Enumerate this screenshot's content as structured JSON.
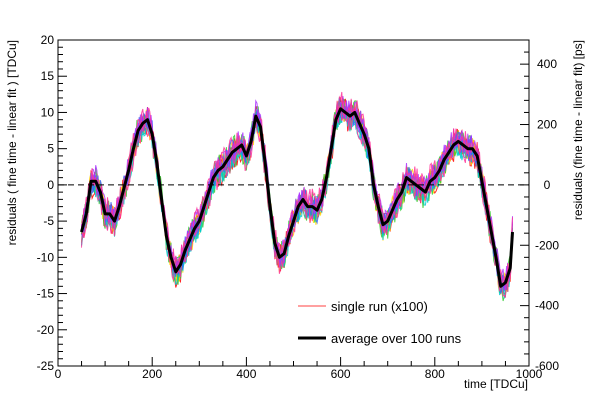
{
  "chart_data": {
    "type": "line",
    "x_axis": {
      "label": "time [TDCu]",
      "range": [
        0,
        1000
      ],
      "ticks": [
        0,
        200,
        400,
        600,
        800,
        1000
      ]
    },
    "y_left": {
      "label": "residuals ( fine time - linear fit ) [TDCu]",
      "range": [
        -25,
        20
      ],
      "ticks": [
        20,
        15,
        10,
        5,
        0,
        -5,
        -10,
        -15,
        -20,
        -25
      ]
    },
    "y_right": {
      "label": "residuals (fine time - linear fit) [ps]",
      "range": [
        -600,
        480
      ],
      "ticks": [
        400,
        200,
        0,
        -200,
        -400,
        -600
      ]
    },
    "reference_line": {
      "y": 0,
      "style": "dashed"
    },
    "legend": {
      "placement": "bottom-right",
      "entries": [
        {
          "label": "single run (x100)",
          "color": "#ff4040",
          "style": "thin"
        },
        {
          "label": "average over 100 runs",
          "color": "#000000",
          "style": "thick"
        }
      ]
    },
    "band_colors": [
      "#ff0000",
      "#ff8800",
      "#ffdd00",
      "#33cc33",
      "#00cccc",
      "#3366ff",
      "#aa33ff",
      "#ff3399"
    ],
    "band_halfwidth": 2.0,
    "series": [
      {
        "name": "average over 100 runs",
        "color": "#000000",
        "points": [
          [
            50,
            -6.5
          ],
          [
            60,
            -4
          ],
          [
            70,
            0.5
          ],
          [
            80,
            0.5
          ],
          [
            90,
            -1
          ],
          [
            100,
            -4
          ],
          [
            110,
            -4
          ],
          [
            120,
            -5
          ],
          [
            130,
            -3
          ],
          [
            140,
            -0.5
          ],
          [
            150,
            2
          ],
          [
            160,
            5
          ],
          [
            170,
            7.5
          ],
          [
            180,
            8.5
          ],
          [
            190,
            9
          ],
          [
            200,
            7
          ],
          [
            210,
            3
          ],
          [
            220,
            -2
          ],
          [
            230,
            -7
          ],
          [
            240,
            -10
          ],
          [
            250,
            -12
          ],
          [
            260,
            -11
          ],
          [
            270,
            -9
          ],
          [
            280,
            -7.5
          ],
          [
            290,
            -6
          ],
          [
            300,
            -5
          ],
          [
            310,
            -3
          ],
          [
            320,
            -1
          ],
          [
            330,
            1
          ],
          [
            340,
            2
          ],
          [
            350,
            2.5
          ],
          [
            360,
            3.5
          ],
          [
            370,
            4.5
          ],
          [
            380,
            5
          ],
          [
            390,
            5.5
          ],
          [
            400,
            4
          ],
          [
            410,
            6
          ],
          [
            420,
            9.5
          ],
          [
            430,
            8
          ],
          [
            440,
            3
          ],
          [
            450,
            -3
          ],
          [
            460,
            -8
          ],
          [
            470,
            -10
          ],
          [
            480,
            -9.5
          ],
          [
            490,
            -7
          ],
          [
            500,
            -5
          ],
          [
            510,
            -3
          ],
          [
            520,
            -2
          ],
          [
            530,
            -3
          ],
          [
            540,
            -3
          ],
          [
            550,
            -3.5
          ],
          [
            560,
            -2
          ],
          [
            570,
            1
          ],
          [
            580,
            5
          ],
          [
            590,
            9
          ],
          [
            600,
            10.5
          ],
          [
            610,
            10
          ],
          [
            620,
            9.5
          ],
          [
            630,
            10
          ],
          [
            640,
            8.5
          ],
          [
            650,
            7
          ],
          [
            660,
            5
          ],
          [
            670,
            0
          ],
          [
            680,
            -3
          ],
          [
            690,
            -5.5
          ],
          [
            700,
            -5
          ],
          [
            710,
            -3.5
          ],
          [
            720,
            -2
          ],
          [
            730,
            -1
          ],
          [
            740,
            1
          ],
          [
            750,
            0.5
          ],
          [
            760,
            0
          ],
          [
            770,
            -0.5
          ],
          [
            780,
            -1
          ],
          [
            790,
            0.5
          ],
          [
            800,
            1
          ],
          [
            810,
            2
          ],
          [
            820,
            3.5
          ],
          [
            830,
            4.5
          ],
          [
            840,
            5.5
          ],
          [
            850,
            6
          ],
          [
            860,
            5.5
          ],
          [
            870,
            5
          ],
          [
            880,
            5
          ],
          [
            890,
            4
          ],
          [
            900,
            0.5
          ],
          [
            910,
            -3
          ],
          [
            920,
            -6.5
          ],
          [
            930,
            -10
          ],
          [
            940,
            -14
          ],
          [
            950,
            -13.5
          ],
          [
            960,
            -11.5
          ],
          [
            965,
            -6.5
          ]
        ]
      }
    ]
  }
}
